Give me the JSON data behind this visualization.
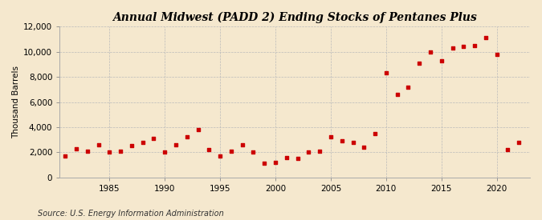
{
  "title": "Annual Midwest (PADD 2) Ending Stocks of Pentanes Plus",
  "ylabel": "Thousand Barrels",
  "source": "Source: U.S. Energy Information Administration",
  "background_color": "#f5e8ce",
  "marker_color": "#cc0000",
  "years": [
    1981,
    1982,
    1983,
    1984,
    1985,
    1986,
    1987,
    1988,
    1989,
    1990,
    1991,
    1992,
    1993,
    1994,
    1995,
    1996,
    1997,
    1998,
    1999,
    2000,
    2001,
    2002,
    2003,
    2004,
    2005,
    2006,
    2007,
    2008,
    2009,
    2010,
    2011,
    2012,
    2013,
    2014,
    2015,
    2016,
    2017,
    2018,
    2019,
    2020,
    2021,
    2022
  ],
  "values": [
    1700,
    2300,
    2100,
    2600,
    2000,
    2100,
    2500,
    2800,
    3100,
    2050,
    2600,
    3200,
    3800,
    2200,
    1700,
    2100,
    2600,
    2050,
    1100,
    1200,
    1600,
    1500,
    2000,
    2100,
    3200,
    2900,
    2800,
    2400,
    3500,
    8300,
    6600,
    7200,
    9100,
    10000,
    9300,
    10300,
    10400,
    10500,
    11100,
    9800,
    2200,
    2800
  ],
  "ylim": [
    0,
    12000
  ],
  "yticks": [
    0,
    2000,
    4000,
    6000,
    8000,
    10000,
    12000
  ],
  "xtick_years": [
    1985,
    1990,
    1995,
    2000,
    2005,
    2010,
    2015,
    2020
  ],
  "xlim": [
    1980.5,
    2023
  ]
}
